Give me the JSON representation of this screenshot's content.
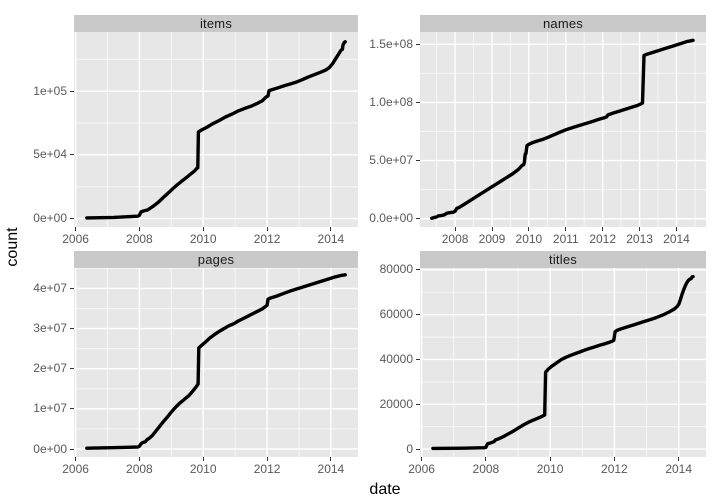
{
  "figure": {
    "x_label": "date",
    "y_label": "count",
    "colors": {
      "outer_bg": "#ffffff",
      "panel_bg": "#e7e7e7",
      "strip_bg": "#c9c9c9",
      "grid_major": "#ffffff",
      "grid_minor": "#f3f3f3",
      "line": "#000000",
      "tick_text": "#595959",
      "tick_mark": "#333333",
      "title_text": "#000000"
    }
  },
  "chart_data": [
    {
      "type": "line",
      "title": "items",
      "xlim": [
        2005.95,
        2014.85
      ],
      "ylim": [
        -6660,
        146500
      ],
      "x_major": [
        2006,
        2008,
        2010,
        2012,
        2014
      ],
      "x_labels": [
        "2006",
        "2008",
        "2010",
        "2012",
        "2014"
      ],
      "x_minor": [
        2007,
        2009,
        2011,
        2013
      ],
      "y_major": [
        0,
        50000,
        100000
      ],
      "y_labels": [
        "0e+00",
        "5e+04",
        "1e+05"
      ],
      "y_minor": [
        25000,
        75000,
        125000
      ],
      "points": [
        [
          2006.35,
          500
        ],
        [
          2007.2,
          900
        ],
        [
          2007.95,
          1800
        ],
        [
          2008.0,
          2500
        ],
        [
          2008.05,
          5200
        ],
        [
          2008.12,
          5800
        ],
        [
          2008.18,
          6300
        ],
        [
          2008.25,
          6600
        ],
        [
          2008.3,
          7500
        ],
        [
          2008.45,
          10000
        ],
        [
          2008.6,
          13000
        ],
        [
          2008.75,
          16500
        ],
        [
          2008.9,
          20000
        ],
        [
          2009.05,
          23500
        ],
        [
          2009.2,
          26800
        ],
        [
          2009.35,
          29800
        ],
        [
          2009.5,
          32800
        ],
        [
          2009.62,
          35200
        ],
        [
          2009.72,
          37200
        ],
        [
          2009.8,
          39500
        ],
        [
          2009.83,
          39800
        ],
        [
          2009.85,
          68000
        ],
        [
          2009.95,
          69500
        ],
        [
          2010.1,
          71500
        ],
        [
          2010.3,
          74500
        ],
        [
          2010.5,
          77000
        ],
        [
          2010.7,
          79800
        ],
        [
          2010.9,
          82000
        ],
        [
          2011.1,
          84500
        ],
        [
          2011.3,
          86500
        ],
        [
          2011.5,
          88200
        ],
        [
          2011.7,
          90500
        ],
        [
          2011.85,
          92500
        ],
        [
          2011.95,
          95000
        ],
        [
          2012.0,
          96000
        ],
        [
          2012.03,
          96300
        ],
        [
          2012.06,
          100300
        ],
        [
          2012.1,
          100800
        ],
        [
          2012.3,
          102300
        ],
        [
          2012.5,
          104000
        ],
        [
          2012.7,
          105500
        ],
        [
          2012.9,
          107000
        ],
        [
          2013.1,
          109000
        ],
        [
          2013.3,
          111200
        ],
        [
          2013.5,
          113200
        ],
        [
          2013.7,
          115200
        ],
        [
          2013.85,
          116800
        ],
        [
          2013.95,
          118500
        ],
        [
          2014.05,
          121500
        ],
        [
          2014.15,
          125500
        ],
        [
          2014.25,
          129500
        ],
        [
          2014.32,
          132300
        ],
        [
          2014.36,
          132800
        ],
        [
          2014.38,
          136300
        ],
        [
          2014.42,
          138300
        ],
        [
          2014.45,
          138800
        ]
      ]
    },
    {
      "type": "line",
      "title": "names",
      "xlim": [
        2007.05,
        2014.8
      ],
      "ylim": [
        -7100000,
        160600000
      ],
      "x_major": [
        2008,
        2009,
        2010,
        2011,
        2012,
        2013,
        2014
      ],
      "x_labels": [
        "2008",
        "2009",
        "2010",
        "2011",
        "2012",
        "2013",
        "2014"
      ],
      "x_minor": [
        2007.5,
        2008.5,
        2009.5,
        2010.5,
        2011.5,
        2012.5,
        2013.5,
        2014.5
      ],
      "y_major": [
        0,
        50000000,
        100000000,
        150000000
      ],
      "y_labels": [
        "0.0e+00",
        "5.0e+07",
        "1.0e+08",
        "1.5e+08"
      ],
      "y_minor": [
        25000000,
        75000000,
        125000000
      ],
      "points": [
        [
          2007.37,
          500000
        ],
        [
          2007.45,
          1200000
        ],
        [
          2007.5,
          1500000
        ],
        [
          2007.55,
          2500000
        ],
        [
          2007.6,
          2600000
        ],
        [
          2007.7,
          3200000
        ],
        [
          2007.78,
          4800000
        ],
        [
          2007.85,
          5200000
        ],
        [
          2007.95,
          5600000
        ],
        [
          2008.0,
          6500000
        ],
        [
          2008.05,
          9000000
        ],
        [
          2008.1,
          9500000
        ],
        [
          2008.2,
          11500000
        ],
        [
          2008.35,
          14500000
        ],
        [
          2008.5,
          17500000
        ],
        [
          2008.65,
          20500000
        ],
        [
          2008.8,
          23500000
        ],
        [
          2008.95,
          26500000
        ],
        [
          2009.1,
          29500000
        ],
        [
          2009.25,
          32500000
        ],
        [
          2009.4,
          35500000
        ],
        [
          2009.55,
          38500000
        ],
        [
          2009.7,
          42000000
        ],
        [
          2009.78,
          44500000
        ],
        [
          2009.82,
          46000000
        ],
        [
          2009.86,
          46500000
        ],
        [
          2009.88,
          48500000
        ],
        [
          2009.9,
          55500000
        ],
        [
          2009.92,
          56000000
        ],
        [
          2009.95,
          63000000
        ],
        [
          2010.0,
          64000000
        ],
        [
          2010.1,
          65500000
        ],
        [
          2010.25,
          67000000
        ],
        [
          2010.4,
          68500000
        ],
        [
          2010.55,
          70500000
        ],
        [
          2010.7,
          72500000
        ],
        [
          2010.85,
          74500000
        ],
        [
          2011.0,
          76500000
        ],
        [
          2011.15,
          78000000
        ],
        [
          2011.3,
          79500000
        ],
        [
          2011.5,
          81500000
        ],
        [
          2011.7,
          83500000
        ],
        [
          2011.9,
          85500000
        ],
        [
          2012.0,
          86500000
        ],
        [
          2012.1,
          87500000
        ],
        [
          2012.15,
          89500000
        ],
        [
          2012.3,
          91000000
        ],
        [
          2012.5,
          93000000
        ],
        [
          2012.7,
          95000000
        ],
        [
          2012.85,
          96500000
        ],
        [
          2012.95,
          97500000
        ],
        [
          2013.05,
          99000000
        ],
        [
          2013.08,
          99500000
        ],
        [
          2013.12,
          140500000
        ],
        [
          2013.2,
          141500000
        ],
        [
          2013.35,
          143000000
        ],
        [
          2013.5,
          144500000
        ],
        [
          2013.7,
          146500000
        ],
        [
          2013.9,
          148500000
        ],
        [
          2014.1,
          150500000
        ],
        [
          2014.3,
          152500000
        ],
        [
          2014.45,
          153500000
        ]
      ]
    },
    {
      "type": "line",
      "title": "pages",
      "xlim": [
        2005.95,
        2014.85
      ],
      "ylim": [
        -2000000,
        45100000
      ],
      "x_major": [
        2006,
        2008,
        2010,
        2012,
        2014
      ],
      "x_labels": [
        "2006",
        "2008",
        "2010",
        "2012",
        "2014"
      ],
      "x_minor": [
        2007,
        2009,
        2011,
        2013
      ],
      "y_major": [
        0,
        10000000,
        20000000,
        30000000,
        40000000
      ],
      "y_labels": [
        "0e+00",
        "1e+07",
        "2e+07",
        "3e+07",
        "4e+07"
      ],
      "y_minor": [
        5000000,
        15000000,
        25000000,
        35000000,
        45000000
      ],
      "points": [
        [
          2006.35,
          200000
        ],
        [
          2007.3,
          350000
        ],
        [
          2007.95,
          500000
        ],
        [
          2008.0,
          700000
        ],
        [
          2008.05,
          1300000
        ],
        [
          2008.1,
          1600000
        ],
        [
          2008.18,
          1800000
        ],
        [
          2008.25,
          2400000
        ],
        [
          2008.3,
          2600000
        ],
        [
          2008.4,
          3300000
        ],
        [
          2008.5,
          4300000
        ],
        [
          2008.62,
          5500000
        ],
        [
          2008.75,
          6800000
        ],
        [
          2008.88,
          8000000
        ],
        [
          2009.0,
          9200000
        ],
        [
          2009.12,
          10300000
        ],
        [
          2009.25,
          11300000
        ],
        [
          2009.4,
          12300000
        ],
        [
          2009.55,
          13300000
        ],
        [
          2009.68,
          14500000
        ],
        [
          2009.78,
          15500000
        ],
        [
          2009.82,
          16000000
        ],
        [
          2009.84,
          16200000
        ],
        [
          2009.86,
          25200000
        ],
        [
          2009.95,
          25800000
        ],
        [
          2010.05,
          26500000
        ],
        [
          2010.2,
          27600000
        ],
        [
          2010.35,
          28500000
        ],
        [
          2010.5,
          29300000
        ],
        [
          2010.65,
          30000000
        ],
        [
          2010.8,
          30700000
        ],
        [
          2010.95,
          31200000
        ],
        [
          2011.1,
          31900000
        ],
        [
          2011.25,
          32500000
        ],
        [
          2011.4,
          33100000
        ],
        [
          2011.55,
          33700000
        ],
        [
          2011.7,
          34300000
        ],
        [
          2011.85,
          34900000
        ],
        [
          2011.95,
          35500000
        ],
        [
          2012.0,
          35800000
        ],
        [
          2012.03,
          37300000
        ],
        [
          2012.1,
          37600000
        ],
        [
          2012.3,
          38100000
        ],
        [
          2012.5,
          38700000
        ],
        [
          2012.7,
          39300000
        ],
        [
          2012.9,
          39800000
        ],
        [
          2013.1,
          40300000
        ],
        [
          2013.3,
          40800000
        ],
        [
          2013.5,
          41300000
        ],
        [
          2013.7,
          41800000
        ],
        [
          2013.9,
          42300000
        ],
        [
          2014.1,
          42800000
        ],
        [
          2014.3,
          43200000
        ],
        [
          2014.45,
          43400000
        ]
      ]
    },
    {
      "type": "line",
      "title": "titles",
      "xlim": [
        2005.95,
        2014.85
      ],
      "ylim": [
        -3535,
        80835
      ],
      "x_major": [
        2006,
        2008,
        2010,
        2012,
        2014
      ],
      "x_labels": [
        "2006",
        "2008",
        "2010",
        "2012",
        "2014"
      ],
      "x_minor": [
        2007,
        2009,
        2011,
        2013
      ],
      "y_major": [
        0,
        20000,
        40000,
        60000,
        80000
      ],
      "y_labels": [
        "0",
        "20000",
        "40000",
        "60000",
        "80000"
      ],
      "y_minor": [
        10000,
        30000,
        50000,
        70000
      ],
      "points": [
        [
          2006.35,
          300
        ],
        [
          2007.3,
          400
        ],
        [
          2007.95,
          600
        ],
        [
          2008.0,
          800
        ],
        [
          2008.05,
          2300
        ],
        [
          2008.15,
          2800
        ],
        [
          2008.25,
          3300
        ],
        [
          2008.3,
          4100
        ],
        [
          2008.4,
          4600
        ],
        [
          2008.55,
          5600
        ],
        [
          2008.7,
          6800
        ],
        [
          2008.85,
          8000
        ],
        [
          2009.0,
          9300
        ],
        [
          2009.15,
          10600
        ],
        [
          2009.3,
          11800
        ],
        [
          2009.45,
          12800
        ],
        [
          2009.6,
          13700
        ],
        [
          2009.72,
          14400
        ],
        [
          2009.8,
          15000
        ],
        [
          2009.83,
          15200
        ],
        [
          2009.86,
          34300
        ],
        [
          2009.95,
          35800
        ],
        [
          2010.05,
          37000
        ],
        [
          2010.15,
          38000
        ],
        [
          2010.25,
          39000
        ],
        [
          2010.35,
          40000
        ],
        [
          2010.5,
          41000
        ],
        [
          2010.65,
          41900
        ],
        [
          2010.8,
          42700
        ],
        [
          2010.95,
          43500
        ],
        [
          2011.1,
          44300
        ],
        [
          2011.25,
          45000
        ],
        [
          2011.4,
          45700
        ],
        [
          2011.55,
          46400
        ],
        [
          2011.7,
          47000
        ],
        [
          2011.85,
          47700
        ],
        [
          2011.95,
          48300
        ],
        [
          2011.98,
          48600
        ],
        [
          2012.02,
          52400
        ],
        [
          2012.1,
          53100
        ],
        [
          2012.15,
          53400
        ],
        [
          2012.3,
          54100
        ],
        [
          2012.5,
          55000
        ],
        [
          2012.7,
          55900
        ],
        [
          2012.9,
          56800
        ],
        [
          2013.1,
          57700
        ],
        [
          2013.3,
          58700
        ],
        [
          2013.5,
          59800
        ],
        [
          2013.7,
          61200
        ],
        [
          2013.85,
          62400
        ],
        [
          2013.95,
          63600
        ],
        [
          2014.0,
          64600
        ],
        [
          2014.05,
          66600
        ],
        [
          2014.1,
          68900
        ],
        [
          2014.15,
          70900
        ],
        [
          2014.2,
          72700
        ],
        [
          2014.25,
          74200
        ],
        [
          2014.3,
          75300
        ],
        [
          2014.34,
          75800
        ],
        [
          2014.37,
          76000
        ],
        [
          2014.4,
          76300
        ],
        [
          2014.42,
          76900
        ],
        [
          2014.45,
          77000
        ]
      ]
    }
  ]
}
